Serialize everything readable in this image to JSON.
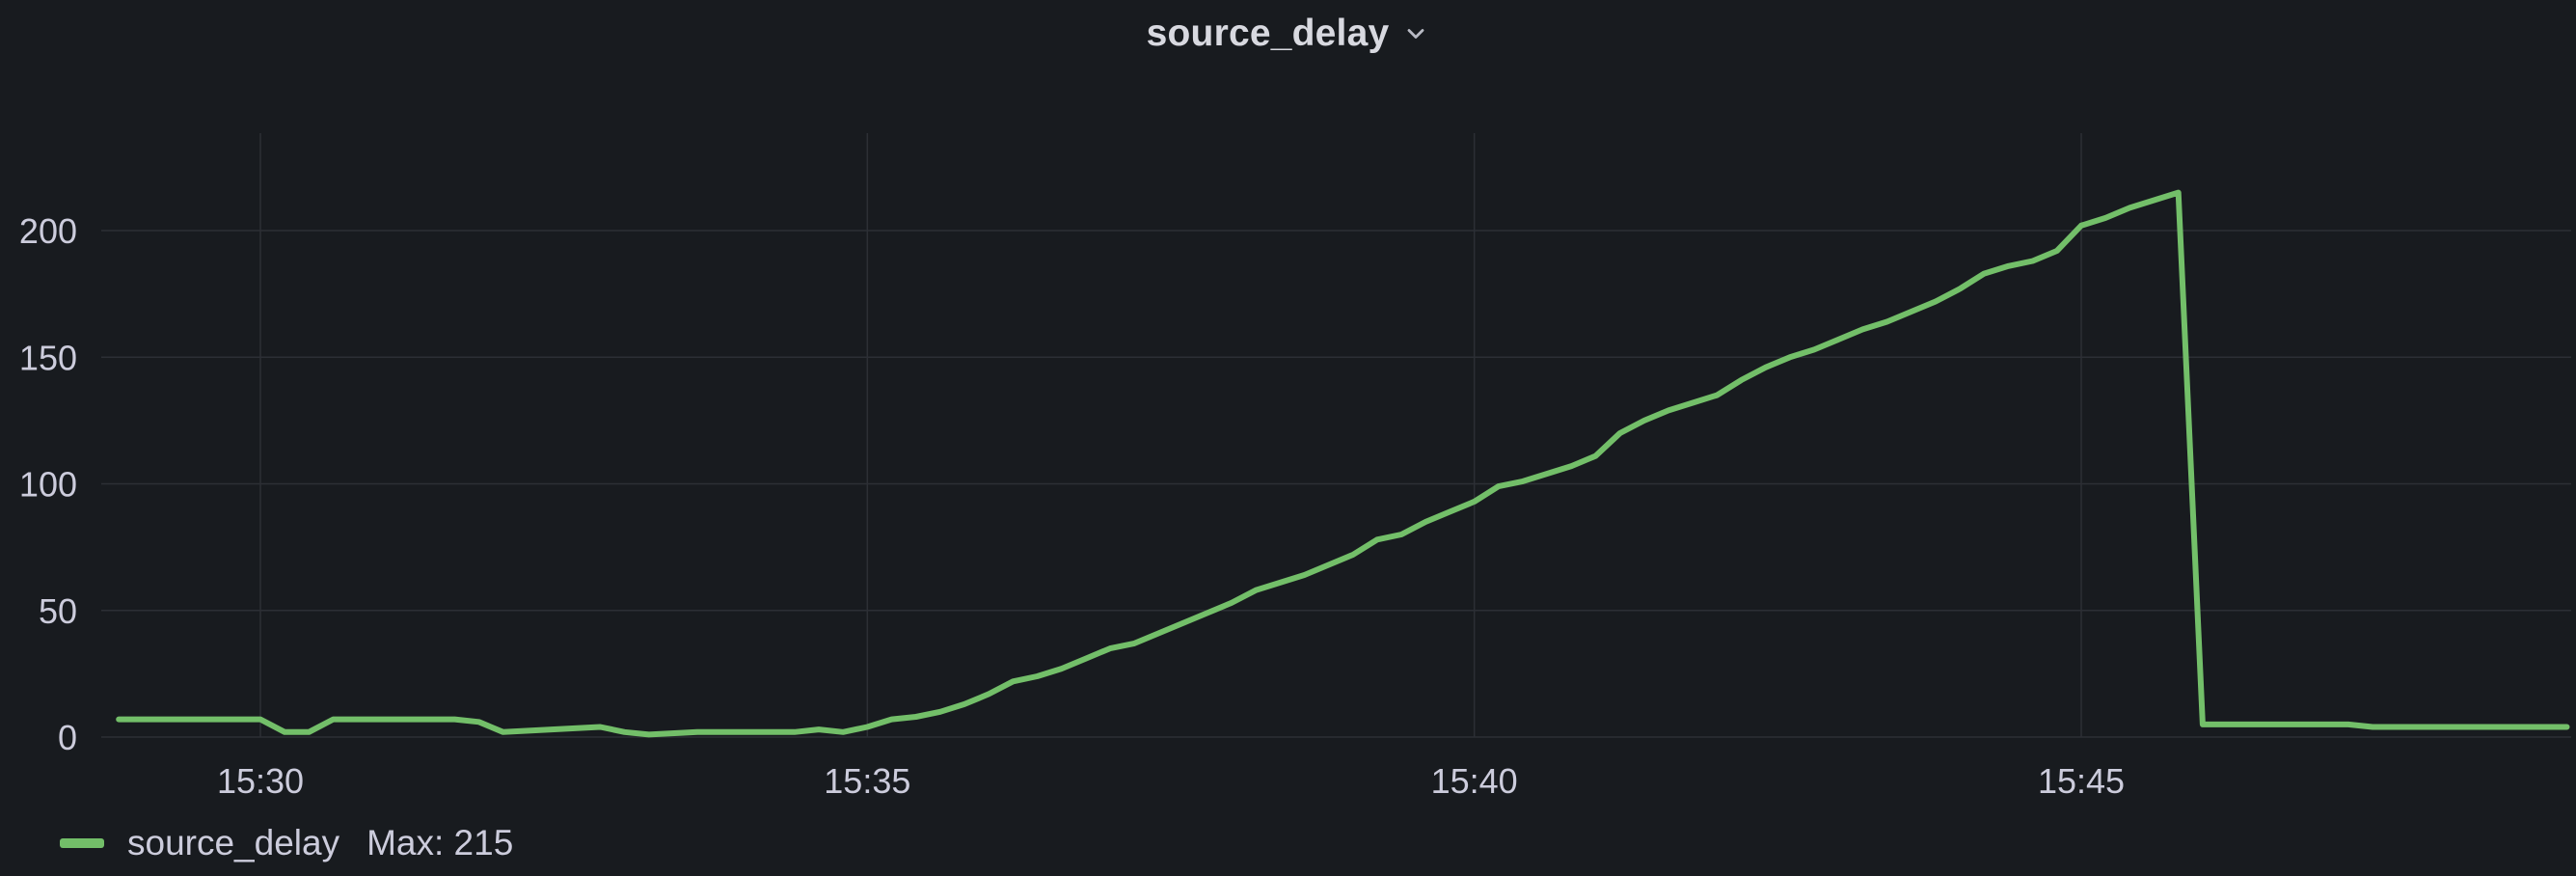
{
  "panel": {
    "title": "source_delay",
    "title_icon": "chevron-down-icon"
  },
  "legend": {
    "series_label": "source_delay",
    "max_label": "Max: 215"
  },
  "colors": {
    "background": "#181b1f",
    "grid": "#2c2f35",
    "text": "#ccccdc",
    "series": "#73bf69"
  },
  "chart_data": {
    "type": "line",
    "title": "source_delay",
    "xlabel": "",
    "ylabel": "",
    "grid": true,
    "legend_placement": "bottom-left",
    "x_ticks": [
      "15:30",
      "15:35",
      "15:40",
      "15:45"
    ],
    "y_ticks": [
      "0",
      "50",
      "100",
      "150",
      "200"
    ],
    "xlim": [
      "15:28:50",
      "15:49:00"
    ],
    "ylim": [
      0,
      240
    ],
    "series": [
      {
        "name": "source_delay",
        "x": [
          "15:28:50",
          "15:29:50",
          "15:30:00",
          "15:30:12",
          "15:30:24",
          "15:30:36",
          "15:31:00",
          "15:31:36",
          "15:31:48",
          "15:32:00",
          "15:32:24",
          "15:32:48",
          "15:33:00",
          "15:33:12",
          "15:33:36",
          "15:34:00",
          "15:34:24",
          "15:34:36",
          "15:34:48",
          "15:35:00",
          "15:35:12",
          "15:35:24",
          "15:35:36",
          "15:35:48",
          "15:36:00",
          "15:36:12",
          "15:36:24",
          "15:36:36",
          "15:36:48",
          "15:37:00",
          "15:37:12",
          "15:37:24",
          "15:37:36",
          "15:37:48",
          "15:38:00",
          "15:38:12",
          "15:38:24",
          "15:38:36",
          "15:38:48",
          "15:39:00",
          "15:39:12",
          "15:39:24",
          "15:39:36",
          "15:39:48",
          "15:40:00",
          "15:40:12",
          "15:40:24",
          "15:40:36",
          "15:40:48",
          "15:41:00",
          "15:41:12",
          "15:41:24",
          "15:41:36",
          "15:41:48",
          "15:42:00",
          "15:42:12",
          "15:42:24",
          "15:42:36",
          "15:42:48",
          "15:43:00",
          "15:43:12",
          "15:43:24",
          "15:43:36",
          "15:43:48",
          "15:44:00",
          "15:44:12",
          "15:44:24",
          "15:44:36",
          "15:44:48",
          "15:45:00",
          "15:45:12",
          "15:45:24",
          "15:45:36",
          "15:45:48",
          "15:46:00",
          "15:46:24",
          "15:47:12",
          "15:47:24",
          "15:48:00",
          "15:49:00"
        ],
        "values": [
          7,
          7,
          7,
          2,
          2,
          7,
          7,
          7,
          6,
          2,
          3,
          4,
          2,
          1,
          2,
          2,
          2,
          3,
          2,
          4,
          7,
          8,
          10,
          13,
          17,
          22,
          24,
          27,
          31,
          35,
          37,
          41,
          45,
          49,
          53,
          58,
          61,
          64,
          68,
          72,
          78,
          80,
          85,
          89,
          93,
          99,
          101,
          104,
          107,
          111,
          120,
          125,
          129,
          132,
          135,
          141,
          146,
          150,
          153,
          157,
          161,
          164,
          168,
          172,
          177,
          183,
          186,
          188,
          192,
          202,
          205,
          209,
          212,
          215,
          5,
          5,
          5,
          4,
          4,
          4
        ]
      }
    ]
  }
}
